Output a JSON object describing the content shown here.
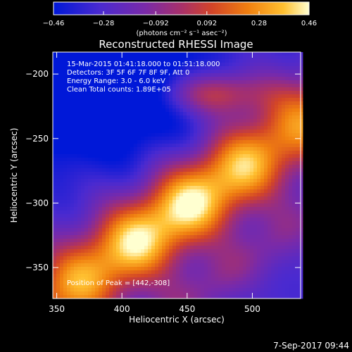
{
  "chart_data": {
    "type": "heatmap",
    "title": "Reconstructed RHESSI Image",
    "xlabel": "Heliocentric X (arcsec)",
    "ylabel": "Heliocentric Y (arcsec)",
    "xlim": [
      347,
      537
    ],
    "ylim": [
      -374,
      -183
    ],
    "x_ticks": [
      350,
      400,
      450,
      500
    ],
    "y_ticks": [
      -200,
      -250,
      -300,
      -350
    ],
    "colorbar": {
      "ticks": [
        -0.46,
        -0.28,
        -0.092,
        0.092,
        0.28,
        0.46
      ],
      "tick_labels": [
        "−0.46",
        "−0.28",
        "−0.092",
        "0.092",
        "0.28",
        "0.46"
      ],
      "range": [
        -0.46,
        0.46
      ],
      "units": "(photons cm⁻² s⁻¹ asec⁻²)",
      "colors": [
        "#0018d8",
        "#4a2ad0",
        "#7a2aa8",
        "#a8306a",
        "#d24428",
        "#f07f10",
        "#ffc030",
        "#ffffd0"
      ]
    },
    "peak": {
      "x": 442,
      "y": -308,
      "value": 0.46
    },
    "annotations": [
      "15-Mar-2015 01:41:18.000 to 01:51:18.000",
      "Detectors: 3F 5F 6F 7F 8F 9F, Att 0",
      "Energy Range: 3.0 - 6.0 keV",
      "Clean    Total counts: 1.89E+05",
      "Position of Peak = [442,-308]"
    ],
    "grid": false
  },
  "footer": {
    "date": "7-Sep-2017 09:44"
  }
}
